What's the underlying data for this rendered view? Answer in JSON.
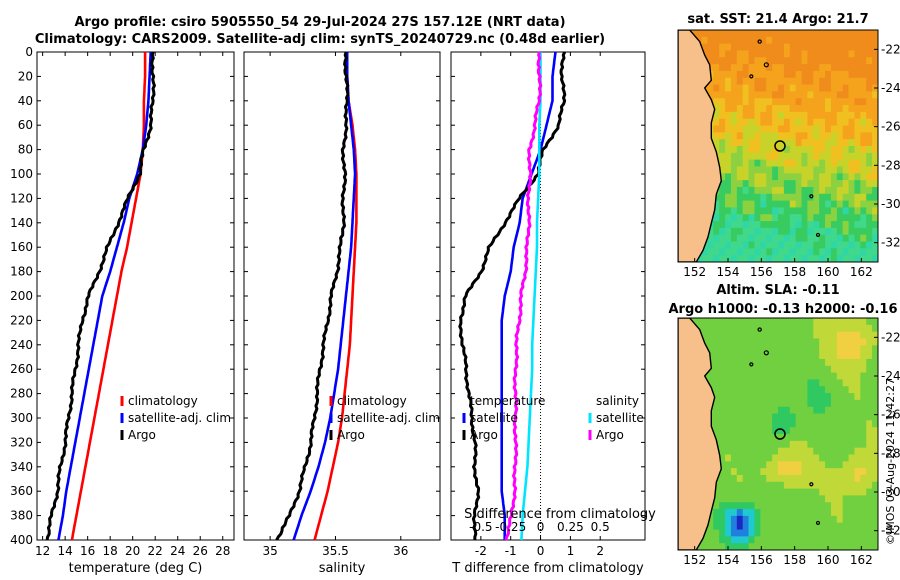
{
  "header": {
    "line1": "Argo profile: csiro 5905550_54 29-Jul-2024 27S 157.12E (NRT data)",
    "line2": "Climatology: CARS2009. Satellite-adj clim: synTS_20240729.nc (0.48d earlier)"
  },
  "credit": "©IMOS 03-Aug-2024 11:42:27",
  "colors": {
    "argo": "#000000",
    "climatology": "#ff0000",
    "satellite": "#0000ff",
    "sat_salinity": "#00e5ff",
    "argo_salinity_diff": "#ff00ff",
    "land": "#f7c08a"
  },
  "chart_data": [
    {
      "type": "line",
      "id": "temperature",
      "xlabel": "temperature (deg C)",
      "ylabel": "",
      "xlim": [
        11.5,
        29
      ],
      "xticks": [
        "12",
        "14",
        "16",
        "18",
        "20",
        "22",
        "24",
        "26",
        "28"
      ],
      "ylim": [
        400,
        0
      ],
      "yticks": [
        "0",
        "20",
        "40",
        "60",
        "80",
        "100",
        "120",
        "140",
        "160",
        "180",
        "200",
        "220",
        "240",
        "260",
        "280",
        "300",
        "320",
        "340",
        "360",
        "380",
        "400"
      ],
      "depth": [
        0,
        20,
        40,
        60,
        80,
        100,
        120,
        140,
        160,
        180,
        200,
        220,
        240,
        260,
        280,
        300,
        320,
        340,
        360,
        380,
        400
      ],
      "series": [
        {
          "name": "climatology",
          "color": "#ff0000",
          "values": [
            21.1,
            21.1,
            21.0,
            21.0,
            20.9,
            20.7,
            20.3,
            19.9,
            19.5,
            19.0,
            18.6,
            18.2,
            17.8,
            17.4,
            17.0,
            16.6,
            16.2,
            15.8,
            15.4,
            15.0,
            14.6
          ]
        },
        {
          "name": "satellite-adj. clim",
          "color": "#0000ff",
          "values": [
            21.6,
            21.5,
            21.4,
            21.2,
            20.9,
            20.4,
            19.7,
            19.2,
            18.6,
            18.0,
            17.3,
            16.9,
            16.5,
            16.1,
            15.7,
            15.3,
            14.9,
            14.5,
            14.1,
            13.8,
            13.4
          ]
        },
        {
          "name": "Argo",
          "color": "#000000",
          "values": [
            21.8,
            21.8,
            21.8,
            21.6,
            21.0,
            20.6,
            19.6,
            18.7,
            17.8,
            17.0,
            16.1,
            15.5,
            15.2,
            14.9,
            14.6,
            14.3,
            14.0,
            13.6,
            13.3,
            12.8,
            12.4
          ]
        }
      ],
      "legend": [
        "climatology",
        "satellite-adj. clim",
        "Argo"
      ],
      "legend_position": "lower-right"
    },
    {
      "type": "line",
      "id": "salinity",
      "xlabel": "salinity",
      "xlim": [
        34.8,
        36.3
      ],
      "xticks": [
        "35",
        "35.5",
        "36"
      ],
      "ylim": [
        400,
        0
      ],
      "depth": [
        0,
        20,
        40,
        60,
        80,
        100,
        120,
        140,
        160,
        180,
        200,
        220,
        240,
        260,
        280,
        300,
        320,
        340,
        360,
        380,
        400
      ],
      "series": [
        {
          "name": "climatology",
          "color": "#ff0000",
          "values": [
            35.59,
            35.59,
            35.6,
            35.63,
            35.65,
            35.66,
            35.66,
            35.66,
            35.65,
            35.64,
            35.63,
            35.62,
            35.61,
            35.59,
            35.57,
            35.55,
            35.52,
            35.48,
            35.44,
            35.39,
            35.34
          ]
        },
        {
          "name": "satellite-adj. clim",
          "color": "#0000ff",
          "values": [
            35.59,
            35.59,
            35.6,
            35.62,
            35.64,
            35.65,
            35.64,
            35.63,
            35.62,
            35.6,
            35.58,
            35.56,
            35.54,
            35.52,
            35.49,
            35.46,
            35.42,
            35.37,
            35.31,
            35.24,
            35.18
          ]
        },
        {
          "name": "Argo",
          "color": "#000000",
          "values": [
            35.58,
            35.58,
            35.59,
            35.58,
            35.56,
            35.57,
            35.56,
            35.56,
            35.54,
            35.51,
            35.47,
            35.44,
            35.41,
            35.38,
            35.36,
            35.34,
            35.31,
            35.27,
            35.22,
            35.15,
            35.05
          ]
        }
      ],
      "legend": [
        "climatology",
        "satellite-adj. clim",
        "Argo"
      ],
      "legend_position": "lower-right"
    },
    {
      "type": "line",
      "id": "differences",
      "xlabel": "T difference from climatology",
      "xlabel_top": "S difference from climatology",
      "xlim": [
        -3,
        3.5
      ],
      "xticks": [
        "-2",
        "-1",
        "0",
        "1",
        "2"
      ],
      "xticks_salinity": [
        "-0.5",
        "-0.25",
        "0",
        "0.25",
        "0.5"
      ],
      "ylim": [
        400,
        0
      ],
      "depth": [
        0,
        20,
        40,
        60,
        80,
        100,
        120,
        140,
        160,
        180,
        200,
        220,
        240,
        260,
        280,
        300,
        320,
        340,
        360,
        380,
        400
      ],
      "series": [
        {
          "name": "satellite",
          "kind": "temperature",
          "color": "#0000ff",
          "values": [
            0.5,
            0.4,
            0.4,
            0.2,
            0.0,
            -0.3,
            -0.6,
            -0.7,
            -0.9,
            -1.0,
            -1.2,
            -1.3,
            -1.3,
            -1.3,
            -1.3,
            -1.3,
            -1.3,
            -1.3,
            -1.3,
            -1.2,
            -1.2
          ]
        },
        {
          "name": "Argo",
          "kind": "temperature",
          "color": "#000000",
          "values": [
            0.8,
            0.7,
            0.8,
            0.6,
            0.1,
            -0.1,
            -0.7,
            -1.2,
            -1.7,
            -2.0,
            -2.5,
            -2.7,
            -2.6,
            -2.5,
            -2.4,
            -2.3,
            -2.2,
            -2.2,
            -2.1,
            -2.2,
            -2.2
          ]
        },
        {
          "name": "satellite",
          "kind": "salinity",
          "color": "#00e5ff",
          "values": [
            0.0,
            0.0,
            0.0,
            -0.01,
            -0.01,
            -0.01,
            -0.02,
            -0.03,
            -0.03,
            -0.04,
            -0.05,
            -0.06,
            -0.07,
            -0.07,
            -0.08,
            -0.09,
            -0.1,
            -0.11,
            -0.13,
            -0.15,
            -0.16
          ]
        },
        {
          "name": "Argo",
          "kind": "salinity",
          "color": "#ff00ff",
          "values": [
            -0.01,
            -0.01,
            -0.01,
            -0.05,
            -0.09,
            -0.09,
            -0.1,
            -0.1,
            -0.11,
            -0.13,
            -0.16,
            -0.18,
            -0.2,
            -0.21,
            -0.21,
            -0.21,
            -0.21,
            -0.21,
            -0.22,
            -0.24,
            -0.29
          ]
        }
      ],
      "legend_temperature_title": "temperature",
      "legend_salinity_title": "salinity",
      "legend_temperature": [
        "satellite",
        "Argo"
      ],
      "legend_salinity": [
        "satellite",
        "Argo"
      ],
      "legend_position": "lower"
    },
    {
      "type": "heatmap",
      "id": "sst_map",
      "title": "sat. SST: 21.4 Argo: 21.7",
      "xticks": [
        "152",
        "154",
        "156",
        "158",
        "160",
        "162"
      ],
      "yticks": [
        "-22",
        "-24",
        "-26",
        "-28",
        "-30",
        "-32"
      ],
      "xlim": [
        151,
        163
      ],
      "ylim": [
        -33,
        -21
      ],
      "marker": {
        "lon": 157.12,
        "lat": -27.0
      }
    },
    {
      "type": "heatmap",
      "id": "sla_map",
      "title": "Altim. SLA: -0.11",
      "subtitle": "Argo h1000: -0.13 h2000: -0.16",
      "xticks": [
        "152",
        "154",
        "156",
        "158",
        "160",
        "162"
      ],
      "yticks": [
        "-22",
        "-24",
        "-26",
        "-28",
        "-30",
        "-32"
      ],
      "xlim": [
        151,
        163
      ],
      "ylim": [
        -33,
        -21
      ],
      "marker": {
        "lon": 157.12,
        "lat": -27.0
      }
    }
  ]
}
